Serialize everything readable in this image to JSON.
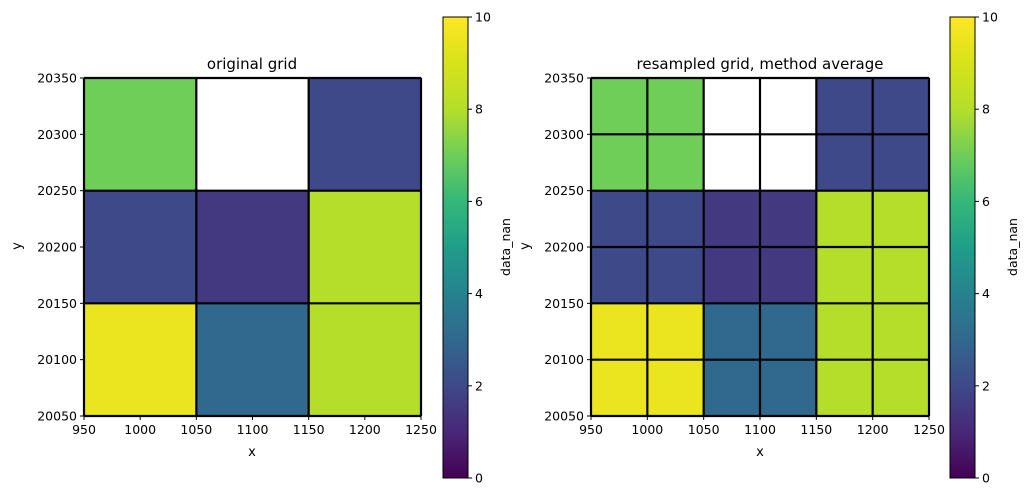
{
  "chart_data": [
    {
      "type": "heatmap",
      "title": "original grid",
      "xlabel": "x",
      "ylabel": "y",
      "x_ticks": [
        950,
        1000,
        1050,
        1100,
        1150,
        1200,
        1250
      ],
      "y_ticks": [
        20050,
        20100,
        20150,
        20200,
        20250,
        20300,
        20350
      ],
      "xlim": [
        950,
        1250
      ],
      "ylim": [
        20050,
        20350
      ],
      "cell_size": 100,
      "x_edges": [
        950,
        1050,
        1150,
        1250
      ],
      "y_edges": [
        20350,
        20250,
        20150,
        20050
      ],
      "values": [
        [
          7,
          null,
          2
        ],
        [
          2,
          1.5,
          8
        ],
        [
          9.5,
          3,
          8
        ]
      ],
      "colormap": "viridis",
      "vmin": 0,
      "vmax": 10,
      "colorbar_label": "data_nan",
      "colorbar_ticks": [
        0,
        2,
        4,
        6,
        8,
        10
      ]
    },
    {
      "type": "heatmap",
      "title": "resampled grid, method average",
      "xlabel": "x",
      "ylabel": "y",
      "x_ticks": [
        950,
        1000,
        1050,
        1100,
        1150,
        1200,
        1250
      ],
      "y_ticks": [
        20050,
        20100,
        20150,
        20200,
        20250,
        20300,
        20350
      ],
      "xlim": [
        950,
        1250
      ],
      "ylim": [
        20050,
        20350
      ],
      "cell_size": 50,
      "x_edges": [
        950,
        1000,
        1050,
        1100,
        1150,
        1200,
        1250
      ],
      "y_edges": [
        20350,
        20300,
        20250,
        20200,
        20150,
        20100,
        20050
      ],
      "values": [
        [
          7,
          7,
          null,
          null,
          2,
          2
        ],
        [
          7,
          7,
          null,
          null,
          2,
          2
        ],
        [
          2,
          2,
          1.5,
          1.5,
          8,
          8
        ],
        [
          2,
          2,
          1.5,
          1.5,
          8,
          8
        ],
        [
          9.5,
          9.5,
          3,
          3,
          8,
          8
        ],
        [
          9.5,
          9.5,
          3,
          3,
          8,
          8
        ]
      ],
      "colormap": "viridis",
      "vmin": 0,
      "vmax": 10,
      "colorbar_label": "data_nan",
      "colorbar_ticks": [
        0,
        2,
        4,
        6,
        8,
        10
      ]
    }
  ]
}
